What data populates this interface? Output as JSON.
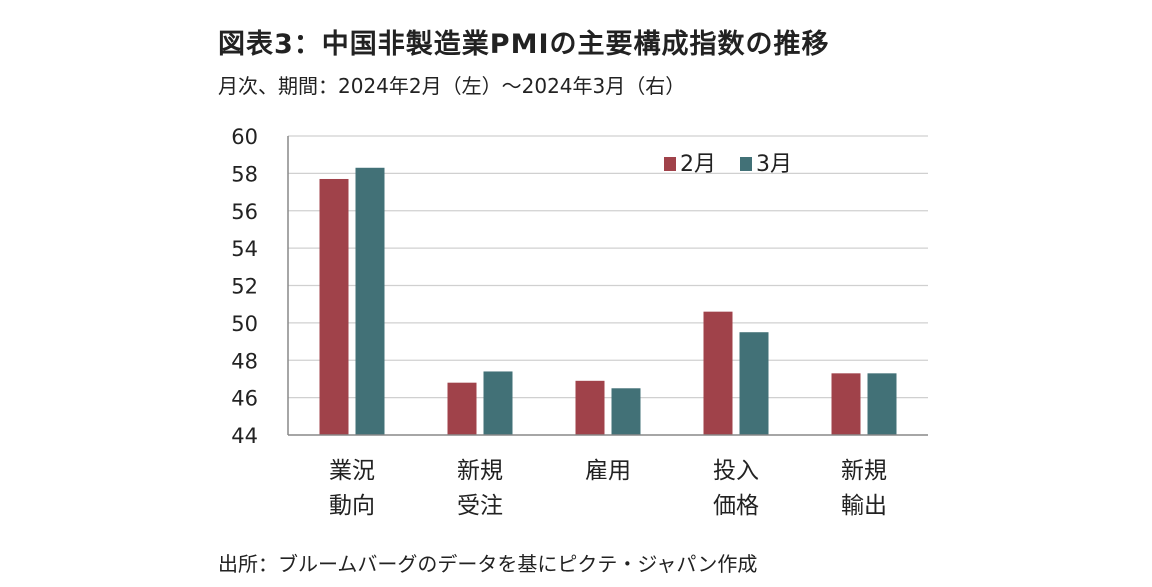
{
  "header": {
    "title": "図表3：中国非製造業PMIの主要構成指数の推移",
    "subtitle": "月次、期間：2024年2月（左）～2024年3月（右）"
  },
  "footer": {
    "source": "出所：ブルームバーグのデータを基にピクテ・ジャパン作成"
  },
  "chart_data": {
    "type": "bar",
    "categories": [
      [
        "業況",
        "動向"
      ],
      [
        "新規",
        "受注"
      ],
      [
        "雇用"
      ],
      [
        "投入",
        "価格"
      ],
      [
        "新規",
        "輸出"
      ]
    ],
    "series": [
      {
        "name": "2月",
        "color": "#A0424A",
        "values": [
          57.7,
          46.8,
          46.9,
          50.6,
          47.3
        ]
      },
      {
        "name": "3月",
        "color": "#427177",
        "values": [
          58.3,
          47.4,
          46.5,
          49.5,
          47.3
        ]
      }
    ],
    "ylim": [
      44,
      60
    ],
    "yticks": [
      "44",
      "46",
      "48",
      "50",
      "52",
      "54",
      "56",
      "58",
      "60"
    ],
    "xlabel": "",
    "ylabel": "",
    "grid": true,
    "legend_position": "top-right",
    "colors": {
      "grid": "#d0d0d0",
      "axis": "#888888"
    }
  }
}
